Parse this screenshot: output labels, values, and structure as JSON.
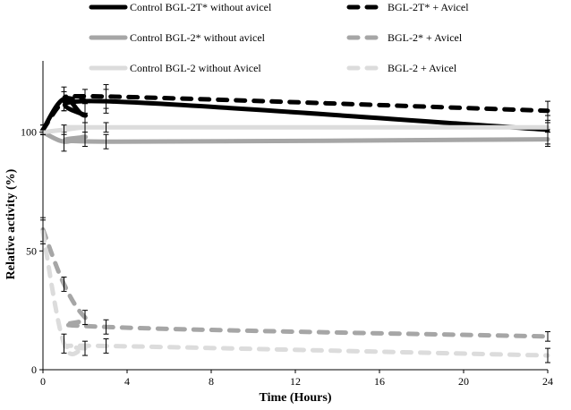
{
  "chart_data": {
    "type": "line",
    "title": "",
    "xlabel": "Time (Hours)",
    "ylabel": "Relative activity (%)",
    "xlim": [
      0,
      24
    ],
    "ylim": [
      0,
      130
    ],
    "x_ticks": [
      0,
      4,
      8,
      12,
      16,
      20,
      24
    ],
    "y_ticks": [
      0,
      50,
      100
    ],
    "grid": false,
    "legend_position": "top",
    "series": [
      {
        "name": "Control BGL-2T* without avicel",
        "color": "#000000",
        "dashed": false,
        "x": [
          0,
          1,
          2,
          3,
          24
        ],
        "y": [
          101,
          114,
          107,
          113,
          101
        ],
        "err": [
          2,
          5,
          5,
          5,
          6
        ]
      },
      {
        "name": "BGL-2T* + Avicel",
        "color": "#000000",
        "dashed": true,
        "x": [
          0,
          1,
          2,
          3,
          24
        ],
        "y": [
          101,
          113,
          113,
          115,
          109
        ],
        "err": [
          2,
          4,
          5,
          5,
          4
        ]
      },
      {
        "name": "Control BGL-2* without avicel",
        "color": "#a6a6a6",
        "dashed": false,
        "x": [
          0,
          1,
          2,
          3,
          24
        ],
        "y": [
          100,
          96,
          98,
          96,
          97
        ],
        "err": [
          1,
          4,
          4,
          3,
          3
        ]
      },
      {
        "name": "BGL-2* + Avicel",
        "color": "#a6a6a6",
        "dashed": true,
        "x": [
          0,
          1,
          2,
          3,
          24
        ],
        "y": [
          59,
          36,
          22,
          18,
          14
        ],
        "err": [
          5,
          3,
          3,
          3,
          2
        ]
      },
      {
        "name": "Control BGL-2 without Avicel",
        "color": "#dcdcdc",
        "dashed": false,
        "x": [
          0,
          1,
          2,
          3,
          24
        ],
        "y": [
          100,
          101,
          102,
          102,
          102
        ],
        "err": [
          1,
          2,
          2,
          2,
          2
        ]
      },
      {
        "name": "BGL-2 + Avicel",
        "color": "#dcdcdc",
        "dashed": true,
        "x": [
          0,
          1,
          2,
          3,
          24
        ],
        "y": [
          58,
          11,
          9,
          10,
          6
        ],
        "err": [
          5,
          4,
          3,
          3,
          3
        ]
      }
    ]
  }
}
